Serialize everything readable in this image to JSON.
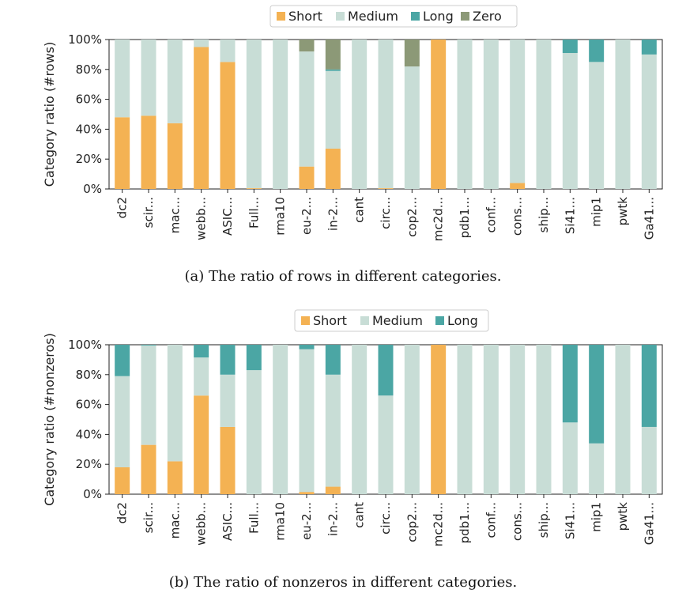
{
  "colors": {
    "Short": "#f4b253",
    "Medium": "#c8ddd6",
    "Long": "#4ba6a4",
    "Zero": "#8c9977"
  },
  "chart_data": [
    {
      "type": "bar",
      "stacked": true,
      "caption": "(a)  The ratio of rows in different categories.",
      "ylabel": "Category ratio (#rows)",
      "ylim": [
        0,
        100
      ],
      "yticks": [
        "0%",
        "20%",
        "40%",
        "60%",
        "80%",
        "100%"
      ],
      "legend": [
        "Short",
        "Medium",
        "Long",
        "Zero"
      ],
      "legend_position": "top-center",
      "categories": [
        "dc2",
        "scir...",
        "mac...",
        "webb...",
        "ASIC...",
        "Full...",
        "rma10",
        "eu-2...",
        "in-2...",
        "cant",
        "circ...",
        "cop2...",
        "mc2d...",
        "pdb1...",
        "conf...",
        "cons...",
        "ship...",
        "Si41...",
        "mip1",
        "pwtk",
        "Ga41..."
      ],
      "series": [
        {
          "name": "Short",
          "values": [
            48,
            49,
            44,
            95,
            85,
            0.5,
            0,
            15,
            27,
            0,
            0.5,
            0,
            100,
            0,
            0,
            4,
            0,
            0,
            0,
            0,
            0
          ]
        },
        {
          "name": "Medium",
          "values": [
            52,
            51,
            56,
            5,
            15,
            99.5,
            100,
            77,
            52,
            100,
            99.5,
            82,
            0,
            100,
            100,
            96,
            100,
            91,
            85,
            100,
            90
          ]
        },
        {
          "name": "Long",
          "values": [
            0,
            0,
            0,
            0,
            0,
            0,
            0,
            0,
            1,
            0,
            0,
            0,
            0,
            0,
            0,
            0,
            0,
            9,
            15,
            0,
            10
          ]
        },
        {
          "name": "Zero",
          "values": [
            0,
            0,
            0,
            0,
            0,
            0,
            0,
            8,
            20,
            0,
            0,
            18,
            0,
            0,
            0,
            0,
            0,
            0,
            0,
            0,
            0
          ]
        }
      ]
    },
    {
      "type": "bar",
      "stacked": true,
      "caption": "(b)  The ratio of nonzeros in different categories.",
      "ylabel": "Category ratio (#nonzeros)",
      "ylim": [
        0,
        100
      ],
      "yticks": [
        "0%",
        "20%",
        "40%",
        "60%",
        "80%",
        "100%"
      ],
      "legend": [
        "Short",
        "Medium",
        "Long"
      ],
      "legend_position": "top-center",
      "categories": [
        "dc2",
        "scir...",
        "mac...",
        "webb...",
        "ASIC...",
        "Full...",
        "rma10",
        "eu-2...",
        "in-2...",
        "cant",
        "circ...",
        "cop2...",
        "mc2d...",
        "pdb1...",
        "conf...",
        "cons...",
        "ship...",
        "Si41...",
        "mip1",
        "pwtk",
        "Ga41..."
      ],
      "series": [
        {
          "name": "Short",
          "values": [
            18,
            33,
            22,
            66,
            45,
            0,
            0,
            1.5,
            5,
            0,
            0,
            0,
            100,
            0,
            0,
            0,
            0,
            0,
            0,
            0,
            0
          ]
        },
        {
          "name": "Medium",
          "values": [
            61,
            66.5,
            78,
            25.5,
            35,
            83,
            100,
            95.5,
            75,
            100,
            66,
            100,
            0,
            100,
            100,
            100,
            100,
            48,
            34,
            100,
            45
          ]
        },
        {
          "name": "Long",
          "values": [
            21,
            0.5,
            0,
            8.5,
            20,
            17,
            0,
            3,
            20,
            0,
            34,
            0,
            0,
            0,
            0,
            0,
            0,
            52,
            66,
            0,
            55
          ]
        }
      ]
    }
  ]
}
